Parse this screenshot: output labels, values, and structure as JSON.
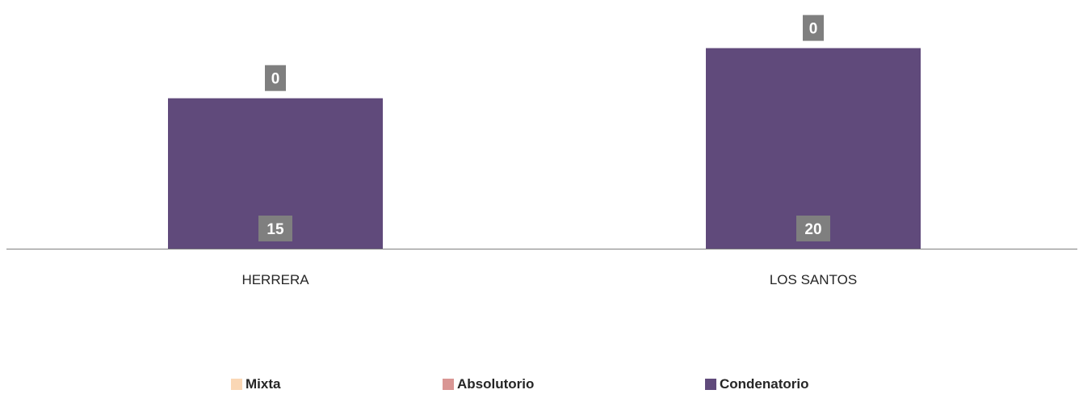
{
  "chart_data": {
    "type": "bar",
    "stacked": true,
    "categories": [
      "HERRERA",
      "LOS SANTOS"
    ],
    "series": [
      {
        "name": "Mixta",
        "color": "#FAD7B5",
        "values": [
          0,
          0
        ]
      },
      {
        "name": "Absolutorio",
        "color": "#D99694",
        "values": [
          0,
          0
        ]
      },
      {
        "name": "Condenatorio",
        "color": "#604A7B",
        "values": [
          15,
          20
        ]
      }
    ],
    "data_labels": {
      "HERRERA": {
        "top": "0",
        "bottom": "15"
      },
      "LOS SANTOS": {
        "top": "0",
        "bottom": "20"
      }
    },
    "label_background": "#7F7F7F",
    "axis_color": "#7F7F7F",
    "legend_position": "bottom",
    "grid": false,
    "title": "",
    "xlabel": "",
    "ylabel": ""
  }
}
